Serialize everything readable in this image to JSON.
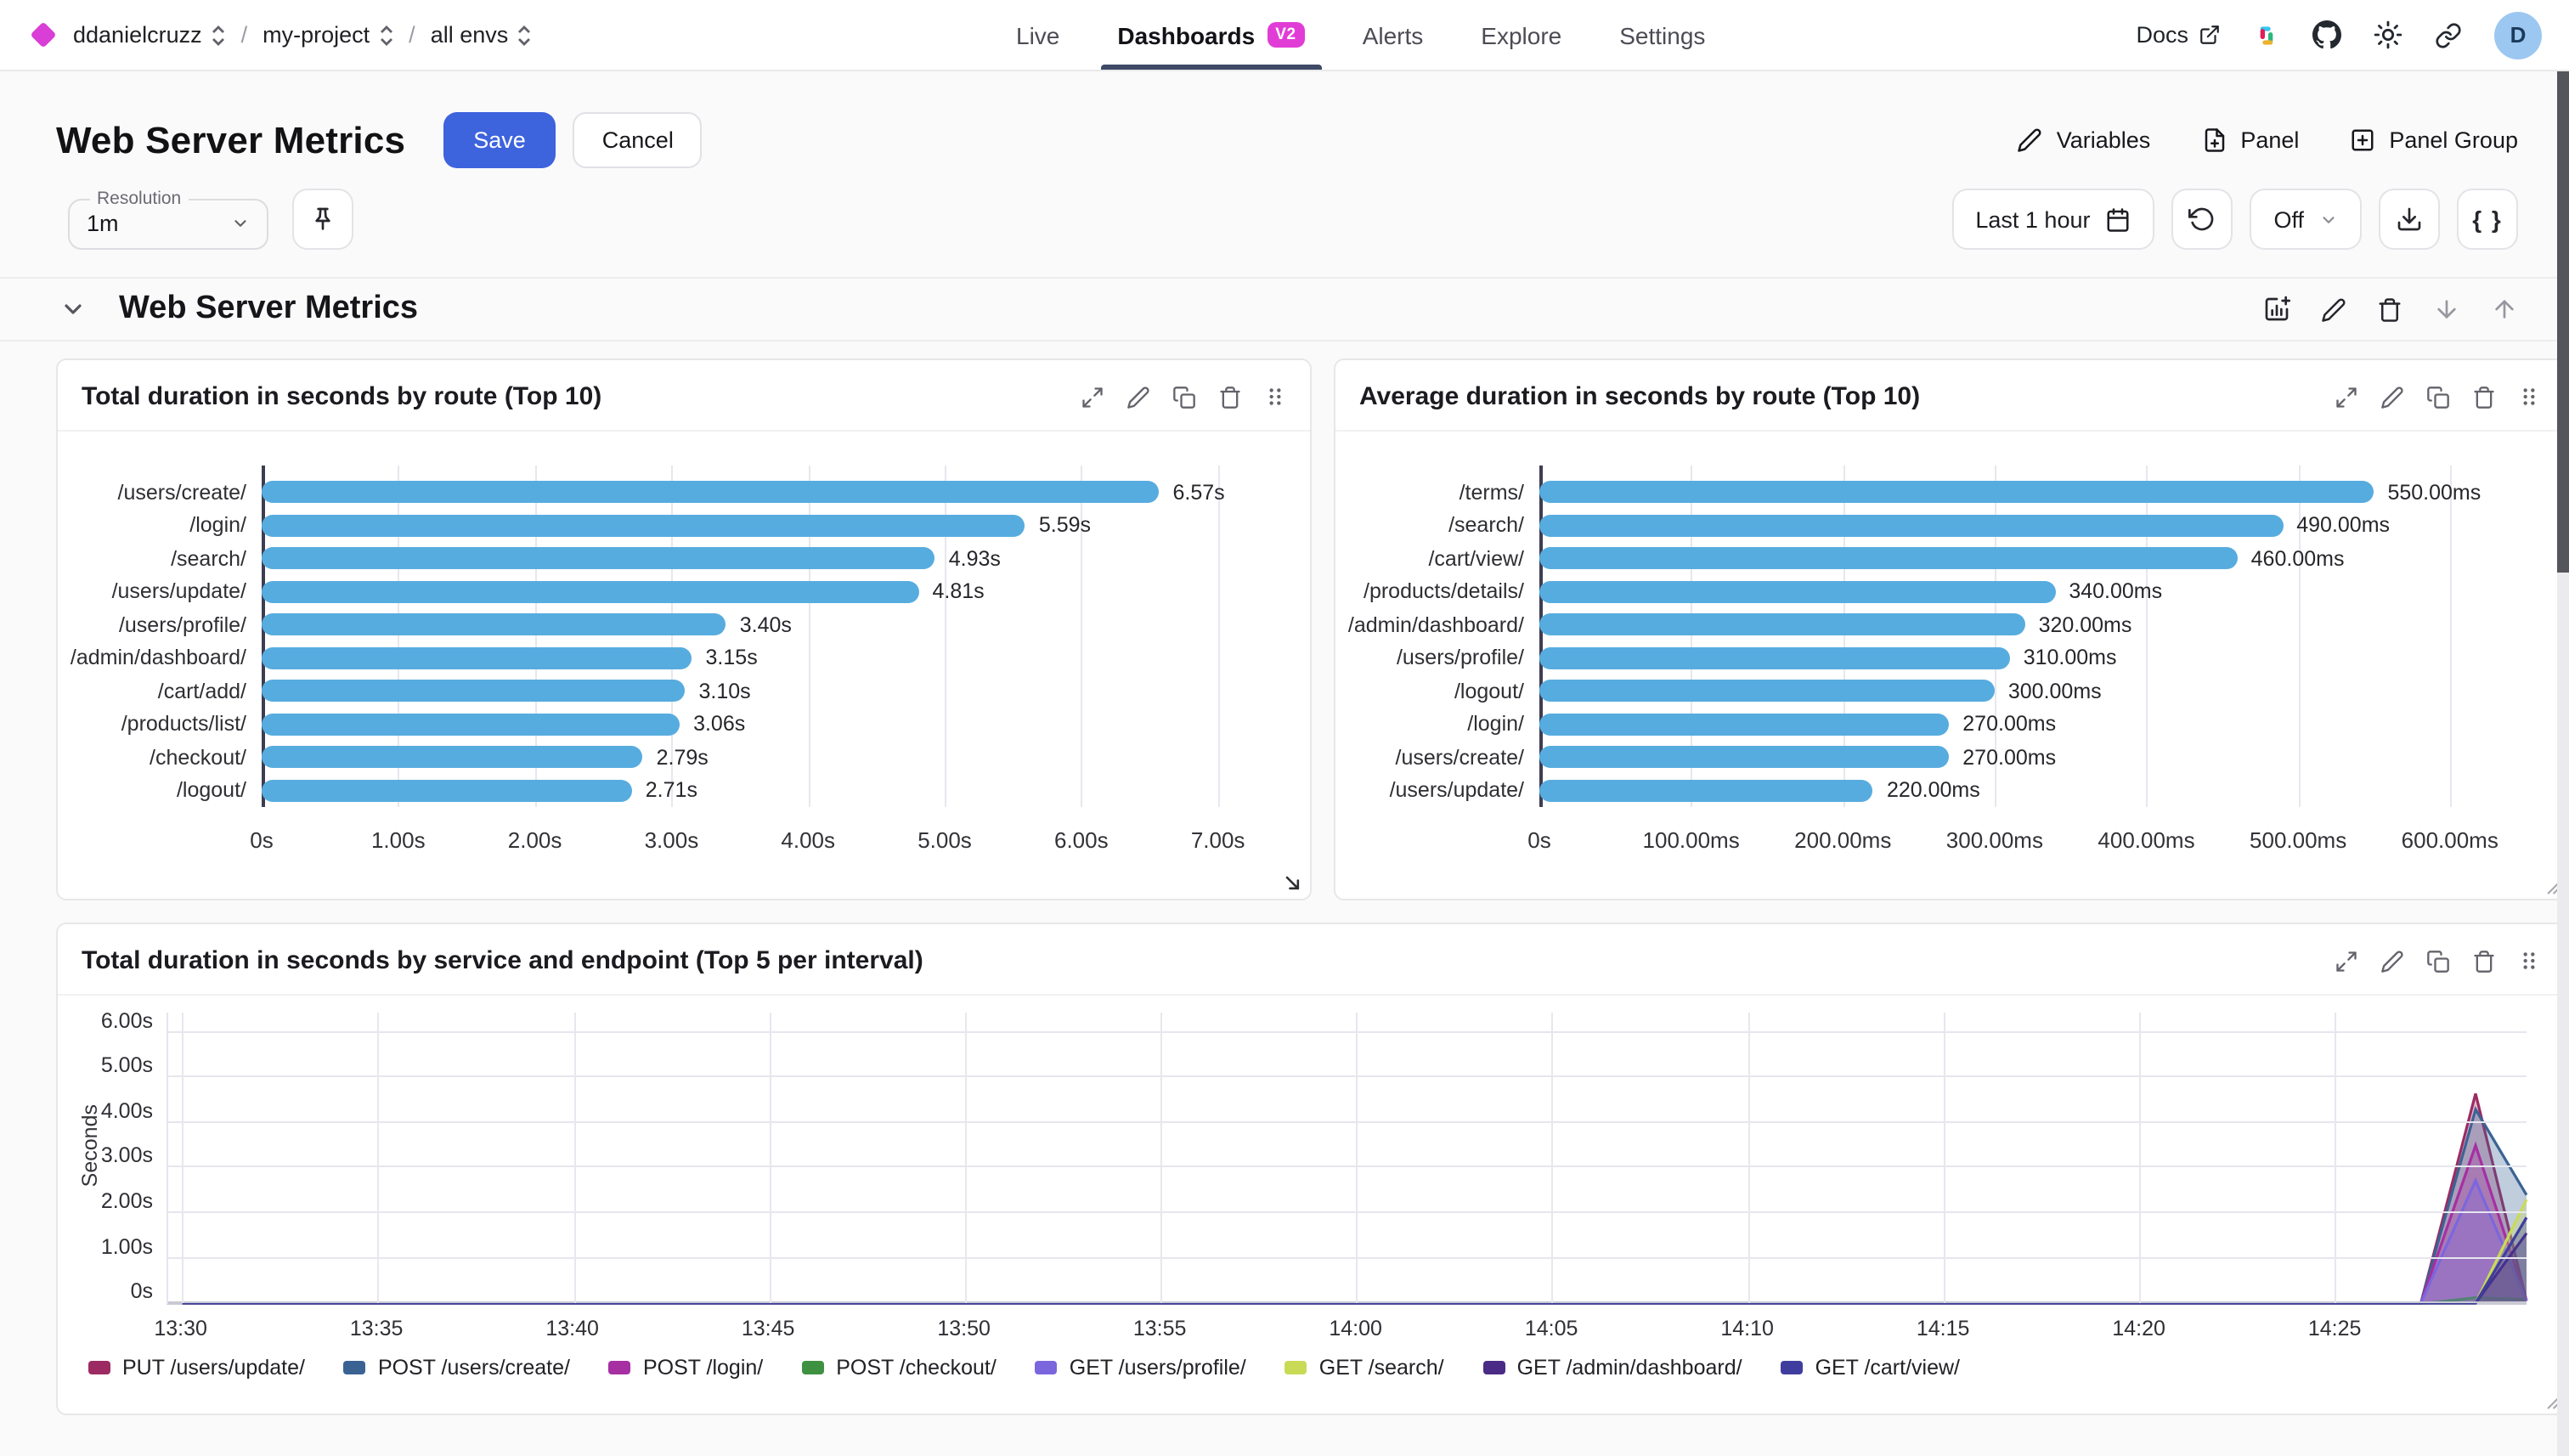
{
  "nav": {
    "breadcrumbs": [
      {
        "label": "ddanielcruzz"
      },
      {
        "label": "my-project"
      },
      {
        "label": "all envs"
      }
    ],
    "tabs": [
      {
        "label": "Live",
        "active": false
      },
      {
        "label": "Dashboards",
        "active": true,
        "badge": "V2"
      },
      {
        "label": "Alerts",
        "active": false
      },
      {
        "label": "Explore",
        "active": false
      },
      {
        "label": "Settings",
        "active": false
      }
    ],
    "docs_label": "Docs",
    "avatar_initial": "D"
  },
  "header": {
    "title": "Web Server Metrics",
    "save_label": "Save",
    "cancel_label": "Cancel",
    "variables_label": "Variables",
    "panel_label": "Panel",
    "panel_group_label": "Panel Group"
  },
  "toolbar": {
    "resolution_label": "Resolution",
    "resolution_value": "1m",
    "time_range": "Last 1 hour",
    "refresh_interval": "Off",
    "braces_label": "{ }"
  },
  "section": {
    "title": "Web Server Metrics"
  },
  "colors": {
    "accent_blue": "#3D63DD",
    "bar_blue": "#57ACDF",
    "badge_magenta": "#E13DD6",
    "brand_magenta": "#D93ED6",
    "tab_underline": "#3e4a66"
  },
  "chart_data": [
    {
      "type": "bar",
      "title": "Total duration in seconds by route (Top 10)",
      "orientation": "horizontal",
      "categories": [
        "/users/create/",
        "/login/",
        "/search/",
        "/users/update/",
        "/users/profile/",
        "/admin/dashboard/",
        "/cart/add/",
        "/products/list/",
        "/checkout/",
        "/logout/"
      ],
      "values": [
        6.57,
        5.59,
        4.93,
        4.81,
        3.4,
        3.15,
        3.1,
        3.06,
        2.79,
        2.71
      ],
      "value_labels": [
        "6.57s",
        "5.59s",
        "4.93s",
        "4.81s",
        "3.40s",
        "3.15s",
        "3.10s",
        "3.06s",
        "2.79s",
        "2.71s"
      ],
      "bar_color": "#57ACDF",
      "xticks": [
        {
          "v": 0,
          "label": "0s"
        },
        {
          "v": 1,
          "label": "1.00s"
        },
        {
          "v": 2,
          "label": "2.00s"
        },
        {
          "v": 3,
          "label": "3.00s"
        },
        {
          "v": 4,
          "label": "4.00s"
        },
        {
          "v": 5,
          "label": "5.00s"
        },
        {
          "v": 6,
          "label": "6.00s"
        },
        {
          "v": 7,
          "label": "7.00s"
        }
      ],
      "xlim": [
        0,
        7.45
      ]
    },
    {
      "type": "bar",
      "title": "Average duration in seconds by route (Top 10)",
      "orientation": "horizontal",
      "categories": [
        "/terms/",
        "/search/",
        "/cart/view/",
        "/products/details/",
        "/admin/dashboard/",
        "/users/profile/",
        "/logout/",
        "/login/",
        "/users/create/",
        "/users/update/"
      ],
      "values": [
        550,
        490,
        460,
        340,
        320,
        310,
        300,
        270,
        270,
        220
      ],
      "value_labels": [
        "550.00ms",
        "490.00ms",
        "460.00ms",
        "340.00ms",
        "320.00ms",
        "310.00ms",
        "300.00ms",
        "270.00ms",
        "270.00ms",
        "220.00ms"
      ],
      "bar_color": "#57ACDF",
      "xticks": [
        {
          "v": 0,
          "label": "0s"
        },
        {
          "v": 100,
          "label": "100.00ms"
        },
        {
          "v": 200,
          "label": "200.00ms"
        },
        {
          "v": 300,
          "label": "300.00ms"
        },
        {
          "v": 400,
          "label": "400.00ms"
        },
        {
          "v": 500,
          "label": "500.00ms"
        },
        {
          "v": 600,
          "label": "600.00ms"
        }
      ],
      "xlim": [
        0,
        655
      ]
    },
    {
      "type": "area",
      "title": "Total duration in seconds by service and endpoint (Top 5 per interval)",
      "ylabel": "Seconds",
      "ylim": [
        0,
        6.45
      ],
      "yticks": [
        {
          "v": 0,
          "label": "0s"
        },
        {
          "v": 1,
          "label": "1.00s"
        },
        {
          "v": 2,
          "label": "2.00s"
        },
        {
          "v": 3,
          "label": "3.00s"
        },
        {
          "v": 4,
          "label": "4.00s"
        },
        {
          "v": 5,
          "label": "5.00s"
        },
        {
          "v": 6,
          "label": "6.00s"
        }
      ],
      "xticks": [
        {
          "m": 0,
          "label": "13:30"
        },
        {
          "m": 5,
          "label": "13:35"
        },
        {
          "m": 10,
          "label": "13:40"
        },
        {
          "m": 15,
          "label": "13:45"
        },
        {
          "m": 20,
          "label": "13:50"
        },
        {
          "m": 25,
          "label": "13:55"
        },
        {
          "m": 30,
          "label": "14:00"
        },
        {
          "m": 35,
          "label": "14:05"
        },
        {
          "m": 40,
          "label": "14:10"
        },
        {
          "m": 45,
          "label": "14:15"
        },
        {
          "m": 50,
          "label": "14:20"
        },
        {
          "m": 55,
          "label": "14:25"
        }
      ],
      "x_range_minutes": [
        0,
        59.9
      ],
      "grid": true,
      "legend_position": "bottom",
      "series": [
        {
          "name": "PUT /users/update/",
          "color": "#9C2B63",
          "points": [
            [
              0,
              0
            ],
            [
              57.2,
              0
            ],
            [
              58.6,
              4.65
            ],
            [
              59.9,
              0.05
            ]
          ]
        },
        {
          "name": "POST /users/create/",
          "color": "#3A6394",
          "points": [
            [
              0,
              0
            ],
            [
              57.2,
              0
            ],
            [
              58.6,
              4.3
            ],
            [
              59.9,
              2.4
            ]
          ]
        },
        {
          "name": "POST /login/",
          "color": "#A62FA2",
          "points": [
            [
              0,
              0
            ],
            [
              57.2,
              0
            ],
            [
              58.6,
              3.5
            ],
            [
              59.9,
              0.05
            ]
          ]
        },
        {
          "name": "POST /checkout/",
          "color": "#3F9142",
          "points": [
            [
              0,
              0
            ],
            [
              57.4,
              0
            ],
            [
              58.6,
              0.12
            ],
            [
              59.9,
              0.08
            ]
          ]
        },
        {
          "name": "GET /users/profile/",
          "color": "#7C66DE",
          "points": [
            [
              0,
              0
            ],
            [
              57.2,
              0
            ],
            [
              58.6,
              2.72
            ],
            [
              59.9,
              0.05
            ]
          ]
        },
        {
          "name": "GET /search/",
          "color": "#C9DB56",
          "points": [
            [
              0,
              0
            ],
            [
              58.6,
              0
            ],
            [
              59.9,
              2.3
            ]
          ]
        },
        {
          "name": "GET /admin/dashboard/",
          "color": "#4A2B85",
          "points": [
            [
              0,
              0
            ],
            [
              58.6,
              0
            ],
            [
              59.9,
              1.55
            ]
          ]
        },
        {
          "name": "GET /cart/view/",
          "color": "#3F3E9E",
          "points": [
            [
              0,
              0
            ],
            [
              58.6,
              0
            ],
            [
              59.9,
              1.9
            ]
          ]
        }
      ]
    }
  ]
}
